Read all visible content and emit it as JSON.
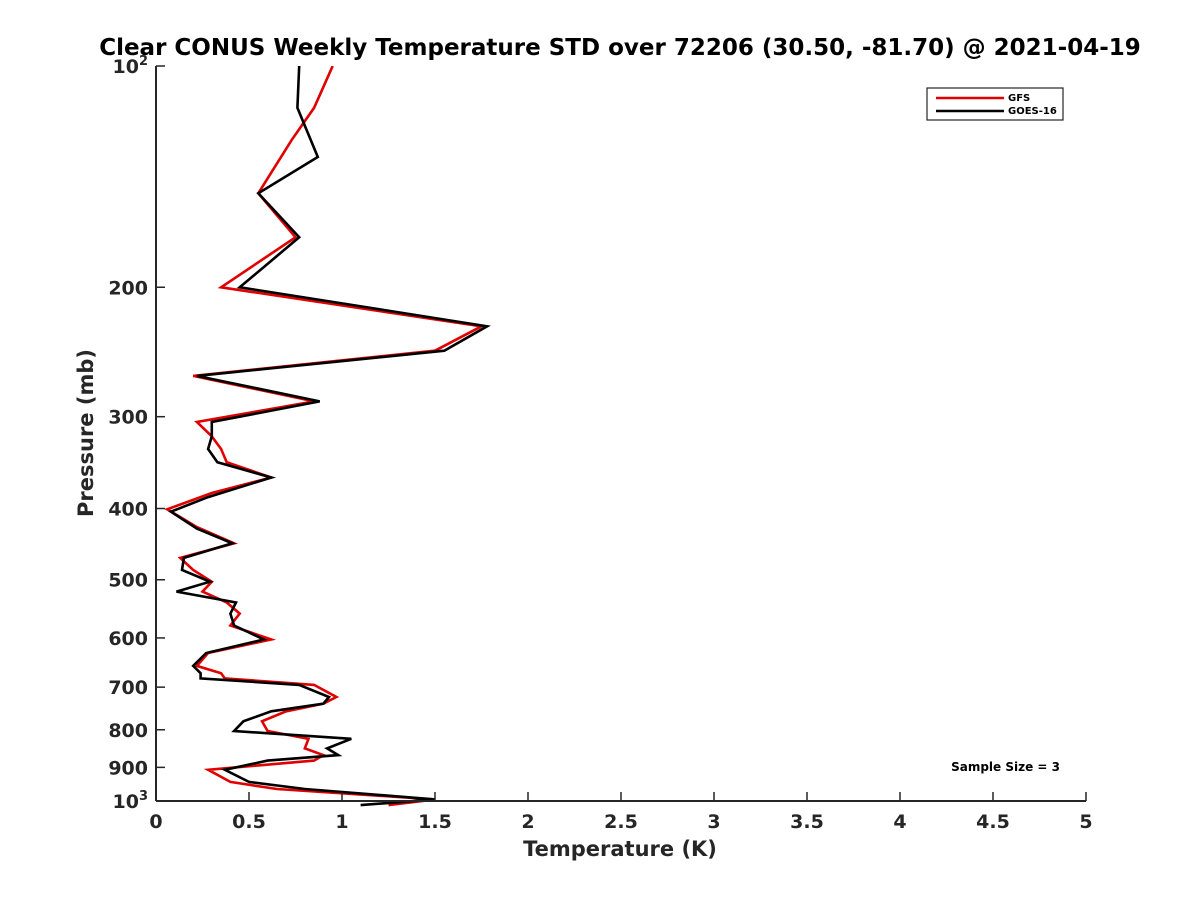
{
  "chart_data": {
    "type": "line",
    "title": "Clear CONUS Weekly Temperature STD over 72206 (30.50, -81.70) @ 2021-04-19",
    "xlabel": "Temperature (K)",
    "ylabel": "Pressure (mb)",
    "xlim": [
      0,
      5
    ],
    "ylim": [
      100,
      1000
    ],
    "y_scale": "log",
    "y_reversed": true,
    "grid": false,
    "legend_position": "top-right",
    "x_ticks": [
      "0",
      "0.5",
      "1",
      "1.5",
      "2",
      "2.5",
      "3",
      "3.5",
      "4",
      "4.5",
      "5"
    ],
    "y_ticks": [
      {
        "value": 100,
        "base": "10",
        "exp": "2"
      },
      {
        "value": 200,
        "label": "200"
      },
      {
        "value": 300,
        "label": "300"
      },
      {
        "value": 400,
        "label": "400"
      },
      {
        "value": 500,
        "label": "500"
      },
      {
        "value": 600,
        "label": "600"
      },
      {
        "value": 700,
        "label": "700"
      },
      {
        "value": 800,
        "label": "800"
      },
      {
        "value": 900,
        "label": "900"
      },
      {
        "value": 1000,
        "base": "10",
        "exp": "3"
      }
    ],
    "series": [
      {
        "name": "GFS",
        "color": "#e00000",
        "points": [
          [
            0.95,
            100
          ],
          [
            0.85,
            114
          ],
          [
            0.73,
            126
          ],
          [
            0.55,
            149
          ],
          [
            0.75,
            171
          ],
          [
            0.35,
            200
          ],
          [
            1.75,
            226
          ],
          [
            1.5,
            244
          ],
          [
            0.2,
            264
          ],
          [
            0.85,
            286
          ],
          [
            0.22,
            305
          ],
          [
            0.3,
            319
          ],
          [
            0.35,
            332
          ],
          [
            0.38,
            346
          ],
          [
            0.62,
            363
          ],
          [
            0.3,
            381
          ],
          [
            0.06,
            401
          ],
          [
            0.22,
            424
          ],
          [
            0.42,
            446
          ],
          [
            0.13,
            467
          ],
          [
            0.2,
            485
          ],
          [
            0.3,
            503
          ],
          [
            0.25,
            519
          ],
          [
            0.38,
            537
          ],
          [
            0.45,
            556
          ],
          [
            0.4,
            577
          ],
          [
            0.62,
            603
          ],
          [
            0.28,
            629
          ],
          [
            0.22,
            655
          ],
          [
            0.35,
            670
          ],
          [
            0.37,
            681
          ],
          [
            0.85,
            695
          ],
          [
            0.97,
            722
          ],
          [
            0.9,
            737
          ],
          [
            0.7,
            755
          ],
          [
            0.57,
            779
          ],
          [
            0.6,
            803
          ],
          [
            0.82,
            823
          ],
          [
            0.8,
            848
          ],
          [
            0.9,
            866
          ],
          [
            0.85,
            881
          ],
          [
            0.28,
            907
          ],
          [
            0.4,
            942
          ],
          [
            0.65,
            963
          ],
          [
            1.5,
            995
          ],
          [
            1.25,
            1013
          ]
        ]
      },
      {
        "name": "GOES-16",
        "color": "#000000",
        "points": [
          [
            0.77,
            100
          ],
          [
            0.76,
            114
          ],
          [
            0.87,
            133
          ],
          [
            0.55,
            149
          ],
          [
            0.77,
            171
          ],
          [
            0.45,
            200
          ],
          [
            1.78,
            226
          ],
          [
            1.55,
            244
          ],
          [
            0.22,
            264
          ],
          [
            0.88,
            286
          ],
          [
            0.3,
            305
          ],
          [
            0.3,
            319
          ],
          [
            0.28,
            332
          ],
          [
            0.33,
            346
          ],
          [
            0.62,
            363
          ],
          [
            0.28,
            386
          ],
          [
            0.08,
            404
          ],
          [
            0.22,
            426
          ],
          [
            0.41,
            446
          ],
          [
            0.15,
            467
          ],
          [
            0.14,
            485
          ],
          [
            0.29,
            503
          ],
          [
            0.11,
            519
          ],
          [
            0.43,
            537
          ],
          [
            0.4,
            556
          ],
          [
            0.42,
            577
          ],
          [
            0.58,
            603
          ],
          [
            0.27,
            629
          ],
          [
            0.2,
            655
          ],
          [
            0.24,
            670
          ],
          [
            0.24,
            681
          ],
          [
            0.77,
            695
          ],
          [
            0.93,
            722
          ],
          [
            0.9,
            737
          ],
          [
            0.62,
            755
          ],
          [
            0.47,
            779
          ],
          [
            0.42,
            803
          ],
          [
            1.05,
            823
          ],
          [
            0.92,
            848
          ],
          [
            0.98,
            866
          ],
          [
            0.6,
            881
          ],
          [
            0.37,
            907
          ],
          [
            0.5,
            942
          ],
          [
            0.8,
            963
          ],
          [
            1.5,
            995
          ],
          [
            1.1,
            1013
          ]
        ]
      }
    ],
    "annotation": "Sample Size = 3"
  }
}
